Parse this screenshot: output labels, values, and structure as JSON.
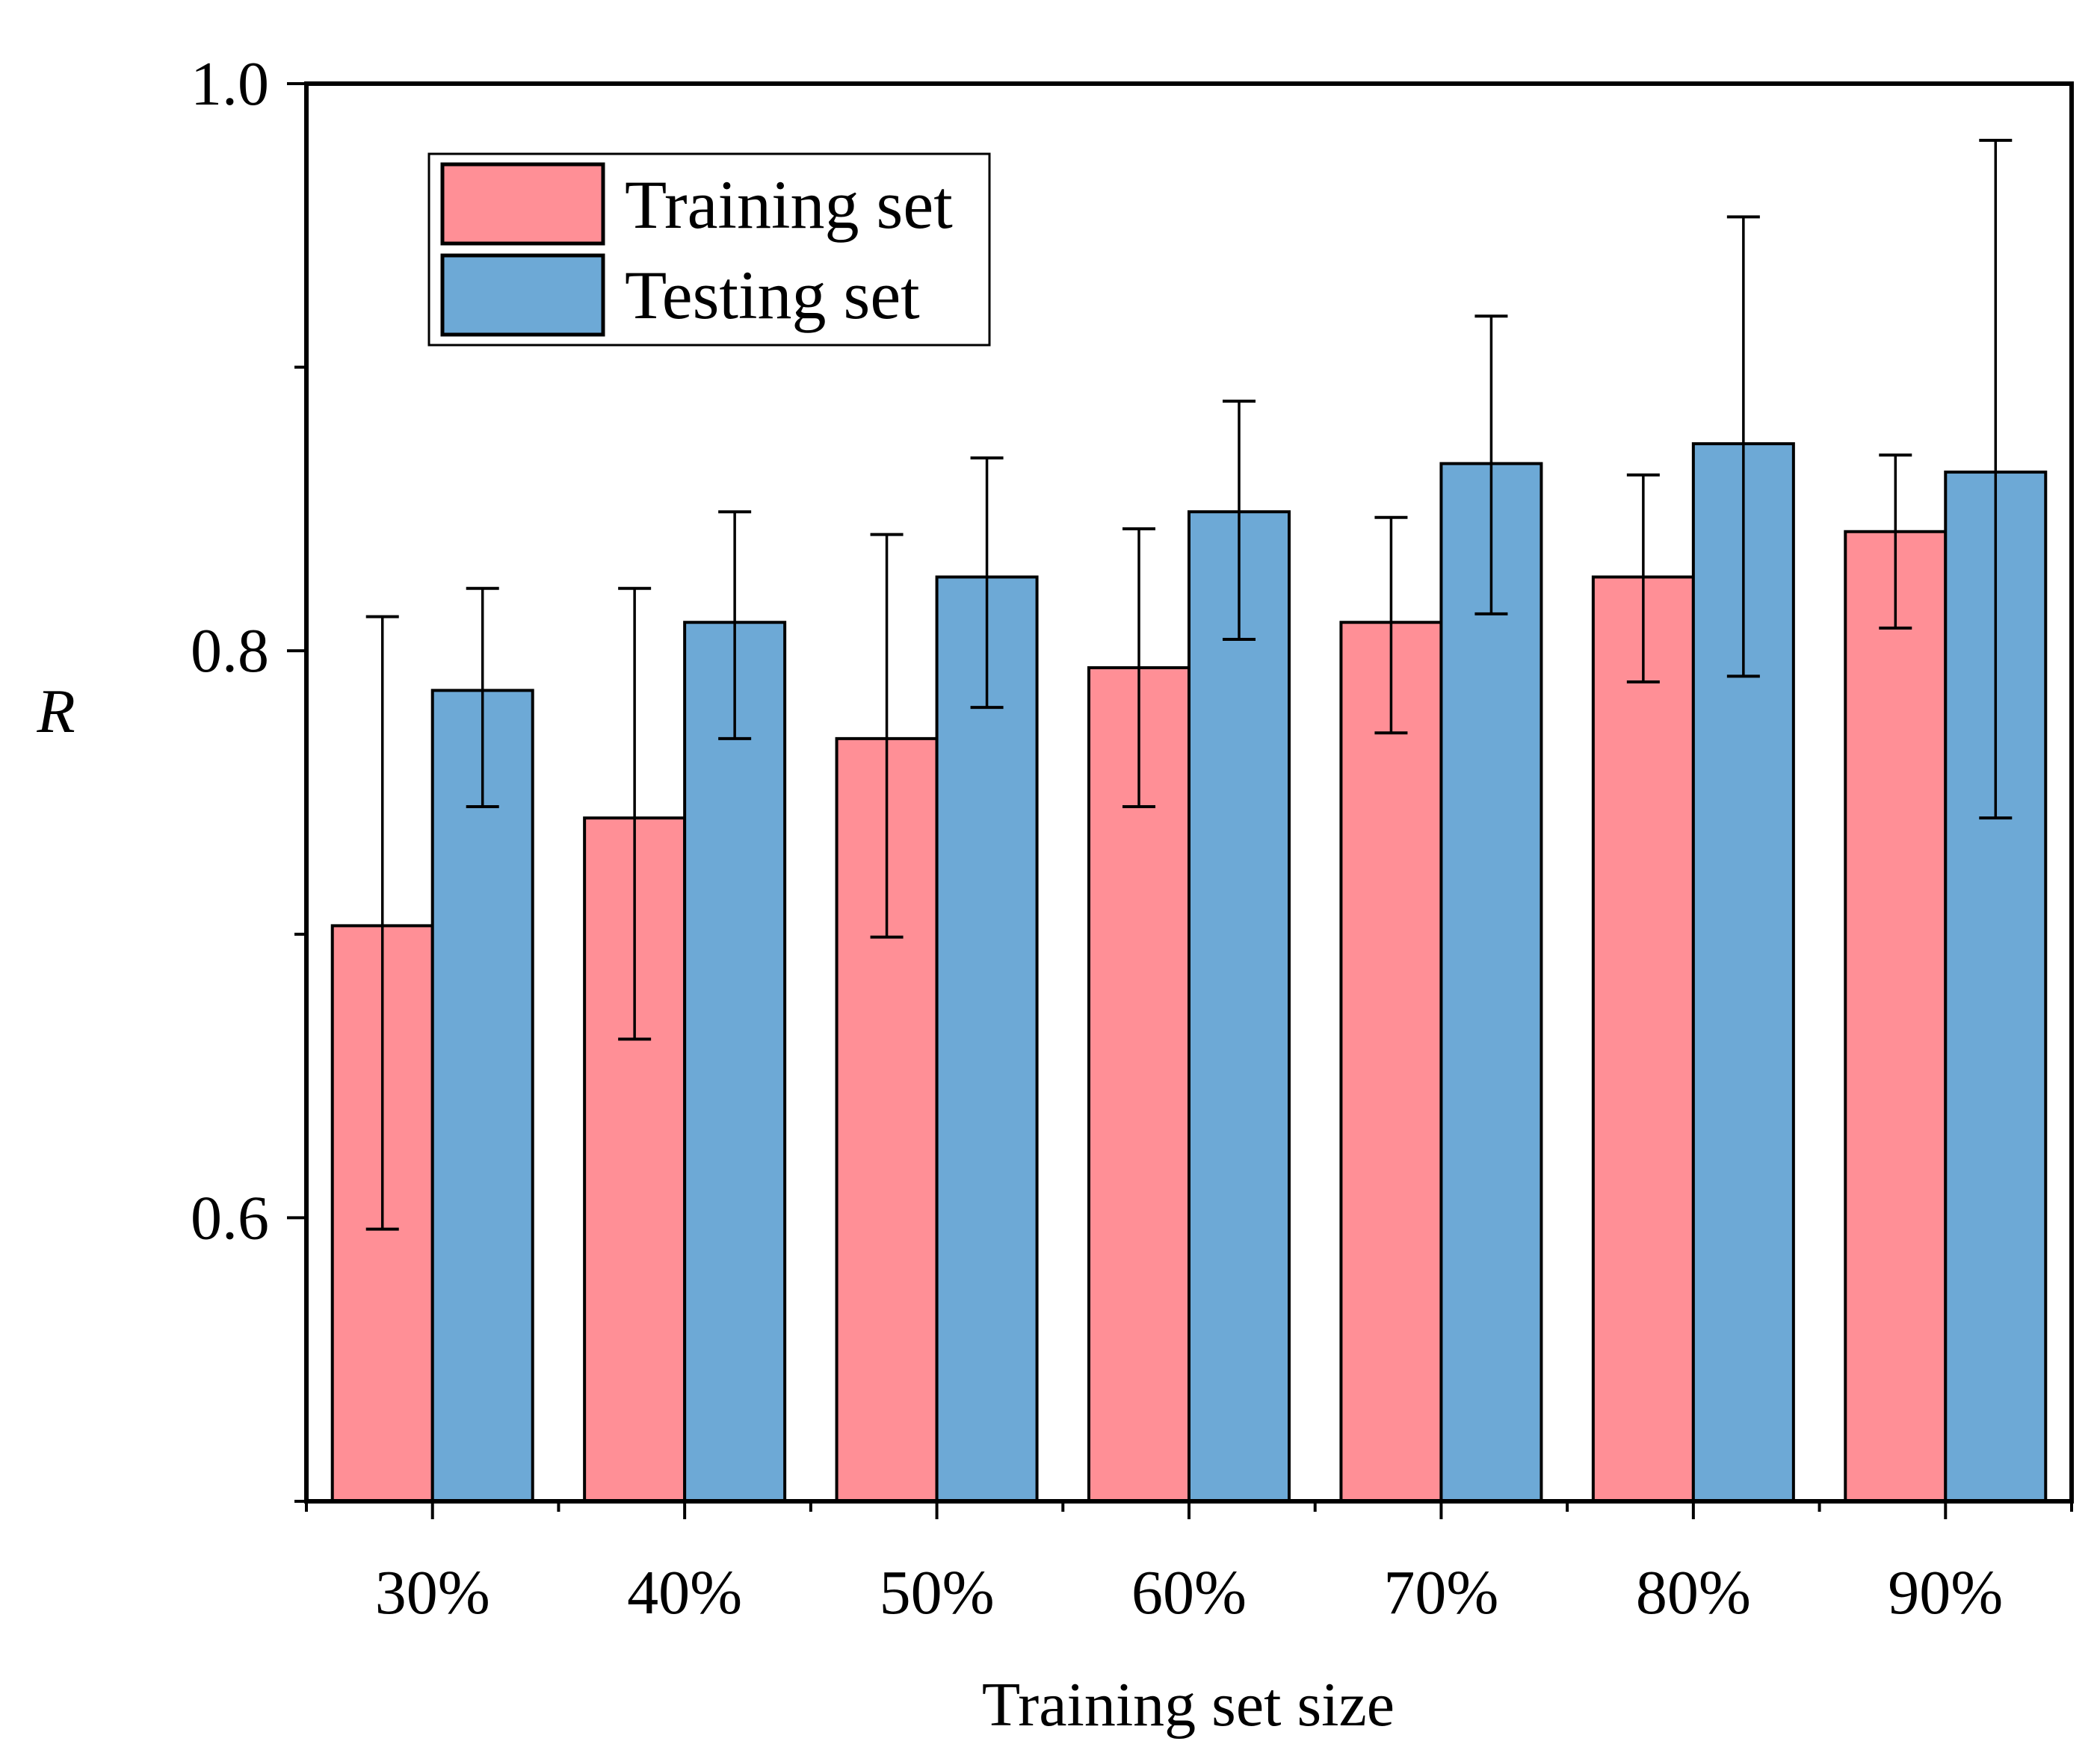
{
  "chart_data": {
    "type": "bar",
    "title": "",
    "xlabel": "Training set size",
    "ylabel": "R",
    "ylim": [
      0.5,
      1.0
    ],
    "yticks": [
      0.6,
      0.8,
      1.0
    ],
    "ytick_labels": [
      "0.6",
      "0.8",
      "1.0"
    ],
    "ytick_minor": [
      0.7,
      0.9
    ],
    "categories": [
      "30%",
      "40%",
      "50%",
      "60%",
      "70%",
      "80%",
      "90%"
    ],
    "legend_position": "top-left",
    "series": [
      {
        "name": "Training set",
        "color": "#FF8F96",
        "values": [
          0.703,
          0.741,
          0.769,
          0.794,
          0.81,
          0.826,
          0.842
        ],
        "err_low": [
          0.596,
          0.663,
          0.699,
          0.745,
          0.771,
          0.789,
          0.808
        ],
        "err_high": [
          0.812,
          0.822,
          0.841,
          0.843,
          0.847,
          0.862,
          0.869
        ]
      },
      {
        "name": "Testing set",
        "color": "#6DA9D6",
        "values": [
          0.786,
          0.81,
          0.826,
          0.849,
          0.866,
          0.873,
          0.863
        ],
        "err_low": [
          0.745,
          0.769,
          0.78,
          0.804,
          0.813,
          0.791,
          0.741
        ],
        "err_high": [
          0.822,
          0.849,
          0.868,
          0.888,
          0.918,
          0.953,
          0.98
        ]
      }
    ]
  }
}
